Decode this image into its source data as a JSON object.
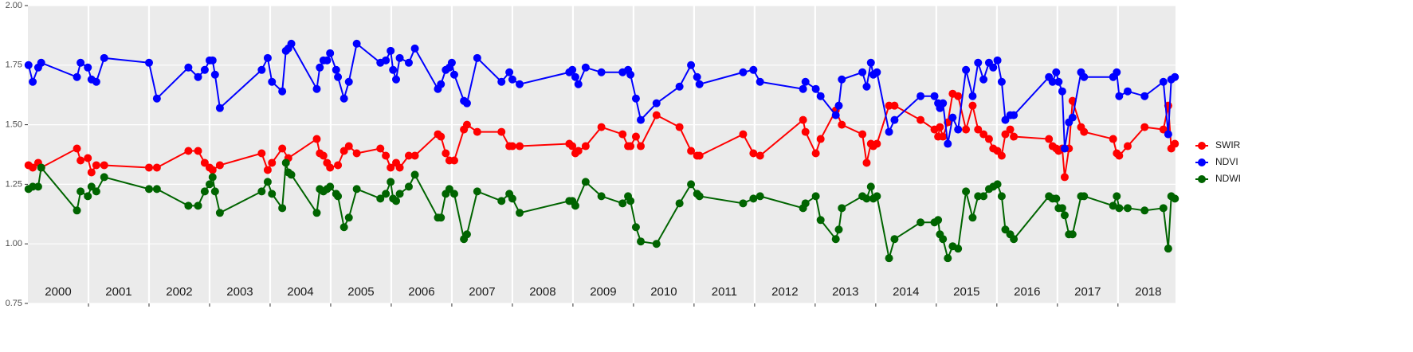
{
  "chart_data": {
    "type": "line",
    "xlim": [
      2000,
      2018.95
    ],
    "ylim": [
      0.75,
      2.0
    ],
    "yticks": [
      {
        "value": 2.0,
        "label": "2.00"
      },
      {
        "value": 1.75,
        "label": "1.75"
      },
      {
        "value": 1.5,
        "label": "1.50"
      },
      {
        "value": 1.25,
        "label": "1.25"
      },
      {
        "value": 1.0,
        "label": "1.00"
      },
      {
        "value": 0.75,
        "label": "0.75"
      }
    ],
    "xticks": [
      2001,
      2002,
      2003,
      2004,
      2005,
      2006,
      2007,
      2008,
      2009,
      2010,
      2011,
      2012,
      2013,
      2014,
      2015,
      2016,
      2017,
      2018
    ],
    "grid": true,
    "legend": "right",
    "annotations": [
      {
        "text": "2000",
        "x": 2000.5
      },
      {
        "text": "2001",
        "x": 2001.5
      },
      {
        "text": "2002",
        "x": 2002.5
      },
      {
        "text": "2003",
        "x": 2003.5
      },
      {
        "text": "2004",
        "x": 2004.5
      },
      {
        "text": "2005",
        "x": 2005.5
      },
      {
        "text": "2006",
        "x": 2006.5
      },
      {
        "text": "2007",
        "x": 2007.5
      },
      {
        "text": "2008",
        "x": 2008.5
      },
      {
        "text": "2009",
        "x": 2009.5
      },
      {
        "text": "2010",
        "x": 2010.5
      },
      {
        "text": "2011",
        "x": 2011.5
      },
      {
        "text": "2012",
        "x": 2012.5
      },
      {
        "text": "2013",
        "x": 2013.5
      },
      {
        "text": "2014",
        "x": 2014.5
      },
      {
        "text": "2015",
        "x": 2015.5
      },
      {
        "text": "2016",
        "x": 2016.5
      },
      {
        "text": "2017",
        "x": 2017.5
      },
      {
        "text": "2018",
        "x": 2018.5
      }
    ],
    "series": [
      {
        "name": "SWIR",
        "color": "#ff0000",
        "x": [
          2000.01,
          2000.08,
          2000.17,
          2000.22,
          2000.81,
          2000.87,
          2000.99,
          2001.05,
          2001.13,
          2001.26,
          2002.0,
          2002.13,
          2002.65,
          2002.81,
          2002.92,
          2003.0,
          2003.05,
          2003.17,
          2003.86,
          2003.96,
          2004.03,
          2004.2,
          2004.3,
          2004.77,
          2004.82,
          2004.88,
          2004.94,
          2004.99,
          2005.12,
          2005.22,
          2005.3,
          2005.43,
          2005.82,
          2005.91,
          2005.99,
          2006.08,
          2006.14,
          2006.29,
          2006.39,
          2006.77,
          2006.82,
          2006.9,
          2006.96,
          2007.04,
          2007.2,
          2007.25,
          2007.42,
          2007.82,
          2007.95,
          2008.0,
          2008.12,
          2008.94,
          2008.99,
          2009.04,
          2009.09,
          2009.21,
          2009.47,
          2009.82,
          2009.91,
          2009.95,
          2010.04,
          2010.12,
          2010.38,
          2010.76,
          2010.95,
          2011.05,
          2011.09,
          2011.81,
          2011.98,
          2012.09,
          2012.8,
          2012.84,
          2013.01,
          2013.09,
          2013.34,
          2013.44,
          2013.78,
          2013.85,
          2013.92,
          2013.96,
          2014.02,
          2014.22,
          2014.31,
          2014.74,
          2014.97,
          2015.03,
          2015.06,
          2015.11,
          2015.19,
          2015.27,
          2015.36,
          2015.49,
          2015.6,
          2015.69,
          2015.78,
          2015.87,
          2015.94,
          2016.01,
          2016.08,
          2016.14,
          2016.22,
          2016.28,
          2016.86,
          2016.92,
          2016.98,
          2017.02,
          2017.08,
          2017.12,
          2017.19,
          2017.25,
          2017.39,
          2017.44,
          2017.92,
          2017.98,
          2018.02,
          2018.16,
          2018.44,
          2018.75,
          2018.83,
          2018.88,
          2018.94
        ],
        "values": [
          1.33,
          1.32,
          1.34,
          1.32,
          1.4,
          1.35,
          1.36,
          1.3,
          1.33,
          1.33,
          1.32,
          1.32,
          1.39,
          1.39,
          1.34,
          1.32,
          1.31,
          1.33,
          1.38,
          1.31,
          1.34,
          1.4,
          1.36,
          1.44,
          1.38,
          1.37,
          1.34,
          1.32,
          1.33,
          1.39,
          1.41,
          1.38,
          1.4,
          1.37,
          1.32,
          1.34,
          1.32,
          1.37,
          1.37,
          1.46,
          1.45,
          1.38,
          1.35,
          1.35,
          1.48,
          1.5,
          1.47,
          1.47,
          1.41,
          1.41,
          1.41,
          1.42,
          1.41,
          1.38,
          1.39,
          1.41,
          1.49,
          1.46,
          1.41,
          1.41,
          1.45,
          1.41,
          1.54,
          1.49,
          1.39,
          1.37,
          1.37,
          1.46,
          1.38,
          1.37,
          1.52,
          1.47,
          1.38,
          1.44,
          1.56,
          1.5,
          1.46,
          1.34,
          1.42,
          1.41,
          1.42,
          1.58,
          1.58,
          1.52,
          1.48,
          1.45,
          1.49,
          1.45,
          1.51,
          1.63,
          1.62,
          1.48,
          1.58,
          1.48,
          1.46,
          1.44,
          1.4,
          1.39,
          1.37,
          1.46,
          1.48,
          1.45,
          1.44,
          1.41,
          1.4,
          1.39,
          1.4,
          1.28,
          1.4,
          1.6,
          1.49,
          1.47,
          1.44,
          1.38,
          1.37,
          1.41,
          1.49,
          1.48,
          1.58,
          1.4,
          1.42
        ]
      },
      {
        "name": "NDVI",
        "color": "#0000ff",
        "x": [
          2000.01,
          2000.08,
          2000.17,
          2000.22,
          2000.81,
          2000.87,
          2000.99,
          2001.05,
          2001.13,
          2001.26,
          2002.0,
          2002.13,
          2002.65,
          2002.81,
          2002.92,
          2003.0,
          2003.05,
          2003.09,
          2003.17,
          2003.86,
          2003.96,
          2004.03,
          2004.2,
          2004.26,
          2004.3,
          2004.35,
          2004.77,
          2004.82,
          2004.88,
          2004.94,
          2004.99,
          2005.09,
          2005.12,
          2005.22,
          2005.3,
          2005.43,
          2005.82,
          2005.91,
          2005.99,
          2006.03,
          2006.08,
          2006.14,
          2006.29,
          2006.39,
          2006.77,
          2006.82,
          2006.9,
          2006.96,
          2007.0,
          2007.04,
          2007.2,
          2007.25,
          2007.42,
          2007.82,
          2007.95,
          2008.0,
          2008.12,
          2008.94,
          2008.99,
          2009.04,
          2009.09,
          2009.21,
          2009.47,
          2009.82,
          2009.91,
          2009.95,
          2010.04,
          2010.12,
          2010.38,
          2010.76,
          2010.95,
          2011.05,
          2011.09,
          2011.81,
          2011.98,
          2012.09,
          2012.8,
          2012.84,
          2013.01,
          2013.09,
          2013.34,
          2013.39,
          2013.44,
          2013.78,
          2013.85,
          2013.92,
          2013.96,
          2014.02,
          2014.22,
          2014.31,
          2014.74,
          2014.97,
          2015.03,
          2015.06,
          2015.11,
          2015.19,
          2015.27,
          2015.36,
          2015.49,
          2015.6,
          2015.69,
          2015.78,
          2015.87,
          2015.94,
          2016.01,
          2016.08,
          2016.14,
          2016.22,
          2016.28,
          2016.86,
          2016.92,
          2016.98,
          2017.02,
          2017.08,
          2017.12,
          2017.19,
          2017.25,
          2017.39,
          2017.44,
          2017.92,
          2017.98,
          2018.02,
          2018.16,
          2018.44,
          2018.75,
          2018.83,
          2018.88,
          2018.94
        ],
        "values": [
          1.75,
          1.68,
          1.74,
          1.76,
          1.7,
          1.76,
          1.74,
          1.69,
          1.68,
          1.78,
          1.76,
          1.61,
          1.74,
          1.7,
          1.73,
          1.77,
          1.77,
          1.71,
          1.57,
          1.73,
          1.78,
          1.68,
          1.64,
          1.81,
          1.82,
          1.84,
          1.65,
          1.74,
          1.77,
          1.77,
          1.8,
          1.73,
          1.7,
          1.61,
          1.68,
          1.84,
          1.76,
          1.77,
          1.81,
          1.73,
          1.69,
          1.78,
          1.76,
          1.82,
          1.65,
          1.67,
          1.73,
          1.74,
          1.76,
          1.71,
          1.6,
          1.59,
          1.78,
          1.68,
          1.72,
          1.69,
          1.67,
          1.72,
          1.73,
          1.7,
          1.67,
          1.74,
          1.72,
          1.72,
          1.73,
          1.71,
          1.61,
          1.52,
          1.59,
          1.66,
          1.75,
          1.7,
          1.67,
          1.72,
          1.73,
          1.68,
          1.65,
          1.68,
          1.65,
          1.62,
          1.54,
          1.58,
          1.69,
          1.72,
          1.66,
          1.76,
          1.71,
          1.72,
          1.47,
          1.52,
          1.62,
          1.62,
          1.59,
          1.57,
          1.59,
          1.42,
          1.53,
          1.48,
          1.73,
          1.62,
          1.76,
          1.69,
          1.76,
          1.74,
          1.77,
          1.68,
          1.52,
          1.54,
          1.54,
          1.7,
          1.68,
          1.72,
          1.68,
          1.64,
          1.4,
          1.51,
          1.53,
          1.72,
          1.7,
          1.7,
          1.72,
          1.62,
          1.64,
          1.62,
          1.68,
          1.46,
          1.69,
          1.7
        ]
      },
      {
        "name": "NDWI",
        "color": "#006400",
        "x": [
          2000.01,
          2000.08,
          2000.17,
          2000.22,
          2000.81,
          2000.87,
          2000.99,
          2001.05,
          2001.13,
          2001.26,
          2002.0,
          2002.13,
          2002.65,
          2002.81,
          2002.92,
          2003.0,
          2003.05,
          2003.09,
          2003.17,
          2003.86,
          2003.96,
          2004.03,
          2004.2,
          2004.26,
          2004.3,
          2004.35,
          2004.77,
          2004.82,
          2004.88,
          2004.94,
          2004.99,
          2005.09,
          2005.12,
          2005.22,
          2005.3,
          2005.43,
          2005.82,
          2005.91,
          2005.99,
          2006.03,
          2006.08,
          2006.14,
          2006.29,
          2006.39,
          2006.77,
          2006.82,
          2006.9,
          2006.96,
          2007.04,
          2007.2,
          2007.25,
          2007.42,
          2007.82,
          2007.95,
          2008.0,
          2008.12,
          2008.94,
          2008.99,
          2009.04,
          2009.21,
          2009.47,
          2009.82,
          2009.91,
          2009.95,
          2010.04,
          2010.12,
          2010.38,
          2010.76,
          2010.95,
          2011.05,
          2011.09,
          2011.81,
          2011.98,
          2012.09,
          2012.8,
          2012.84,
          2013.01,
          2013.09,
          2013.34,
          2013.39,
          2013.44,
          2013.78,
          2013.85,
          2013.92,
          2013.96,
          2014.02,
          2014.22,
          2014.31,
          2014.74,
          2014.97,
          2015.03,
          2015.06,
          2015.11,
          2015.19,
          2015.27,
          2015.36,
          2015.49,
          2015.6,
          2015.69,
          2015.78,
          2015.87,
          2015.94,
          2016.01,
          2016.08,
          2016.14,
          2016.22,
          2016.28,
          2016.86,
          2016.92,
          2016.98,
          2017.02,
          2017.08,
          2017.12,
          2017.19,
          2017.25,
          2017.39,
          2017.44,
          2017.92,
          2017.98,
          2018.02,
          2018.16,
          2018.44,
          2018.75,
          2018.83,
          2018.88,
          2018.94
        ],
        "values": [
          1.23,
          1.24,
          1.24,
          1.32,
          1.14,
          1.22,
          1.2,
          1.24,
          1.22,
          1.28,
          1.23,
          1.23,
          1.16,
          1.16,
          1.22,
          1.25,
          1.28,
          1.22,
          1.13,
          1.22,
          1.26,
          1.21,
          1.15,
          1.34,
          1.3,
          1.29,
          1.13,
          1.23,
          1.22,
          1.23,
          1.24,
          1.21,
          1.2,
          1.07,
          1.11,
          1.23,
          1.19,
          1.21,
          1.26,
          1.19,
          1.18,
          1.21,
          1.24,
          1.29,
          1.11,
          1.11,
          1.21,
          1.23,
          1.21,
          1.02,
          1.04,
          1.22,
          1.18,
          1.21,
          1.19,
          1.13,
          1.18,
          1.18,
          1.16,
          1.26,
          1.2,
          1.17,
          1.2,
          1.18,
          1.07,
          1.01,
          1.0,
          1.17,
          1.25,
          1.21,
          1.2,
          1.17,
          1.19,
          1.2,
          1.15,
          1.17,
          1.2,
          1.1,
          1.02,
          1.06,
          1.15,
          1.2,
          1.19,
          1.24,
          1.19,
          1.2,
          0.94,
          1.02,
          1.09,
          1.09,
          1.1,
          1.04,
          1.02,
          0.94,
          0.99,
          0.98,
          1.22,
          1.11,
          1.2,
          1.2,
          1.23,
          1.24,
          1.25,
          1.2,
          1.06,
          1.04,
          1.02,
          1.2,
          1.19,
          1.19,
          1.15,
          1.15,
          1.12,
          1.04,
          1.04,
          1.2,
          1.2,
          1.16,
          1.2,
          1.15,
          1.15,
          1.14,
          1.15,
          0.98,
          1.2,
          1.19
        ]
      }
    ]
  }
}
